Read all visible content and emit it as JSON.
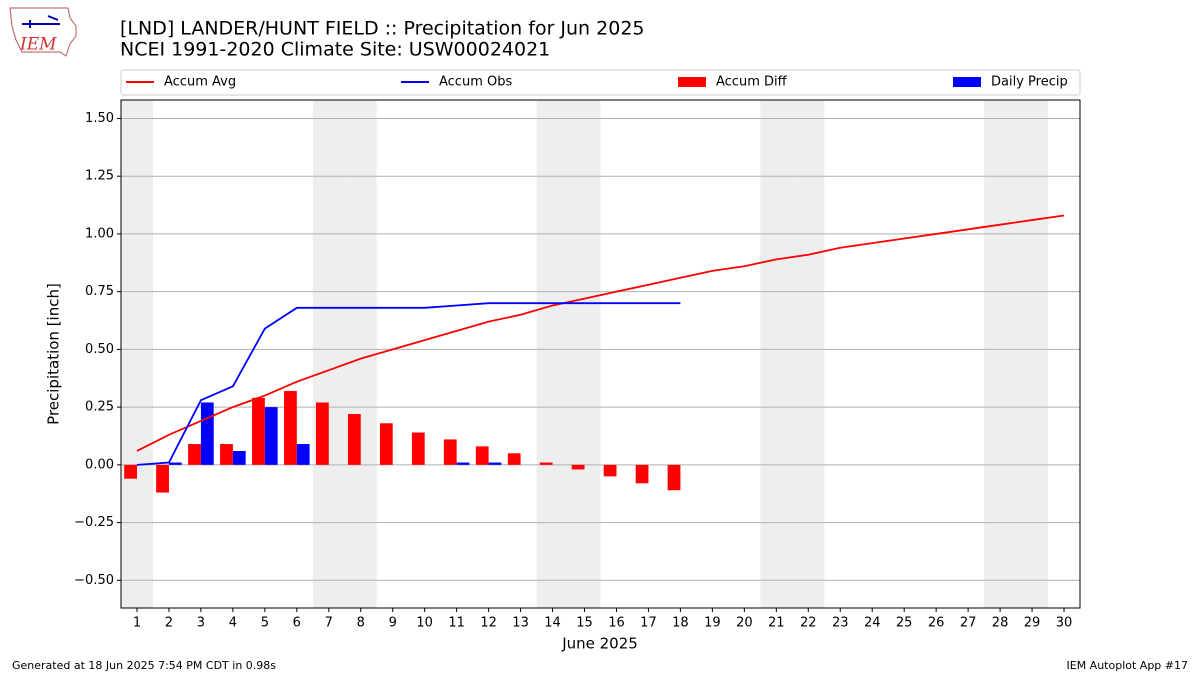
{
  "chart_data": {
    "type": "bar",
    "title": "[LND] LANDER/HUNT FIELD :: Precipitation for Jun 2025",
    "subtitle": "NCEI 1991-2020 Climate Site: USW00024021",
    "logo_text": "IEM",
    "xlabel": "June 2025",
    "ylabel": "Precipitation [inch]",
    "footer_left": "Generated at 18 Jun 2025 7:54 PM CDT in 0.98s",
    "footer_right": "IEM Autoplot App #17",
    "x": [
      1,
      2,
      3,
      4,
      5,
      6,
      7,
      8,
      9,
      10,
      11,
      12,
      13,
      14,
      15,
      16,
      17,
      18,
      19,
      20,
      21,
      22,
      23,
      24,
      25,
      26,
      27,
      28,
      29,
      30
    ],
    "xlim": [
      0.5,
      30.5
    ],
    "xticks": [
      1,
      2,
      3,
      4,
      5,
      6,
      7,
      8,
      9,
      10,
      11,
      12,
      13,
      14,
      15,
      16,
      17,
      18,
      19,
      20,
      21,
      22,
      23,
      24,
      25,
      26,
      27,
      28,
      29,
      30
    ],
    "ylim": [
      -0.62,
      1.58
    ],
    "yticks": [
      {
        "value": -0.5,
        "label": "−0.50"
      },
      {
        "value": -0.25,
        "label": "−0.25"
      },
      {
        "value": 0,
        "label": "0.00"
      },
      {
        "value": 0.25,
        "label": "0.25"
      },
      {
        "value": 0.5,
        "label": "0.50"
      },
      {
        "value": 0.75,
        "label": "0.75"
      },
      {
        "value": 1.0,
        "label": "1.00"
      },
      {
        "value": 1.25,
        "label": "1.25"
      },
      {
        "value": 1.5,
        "label": "1.50"
      }
    ],
    "grid": true,
    "shaded_days": [
      1,
      7,
      8,
      14,
      15,
      21,
      22,
      28,
      29
    ],
    "shade_color": "#eeeeee",
    "series": [
      {
        "name": "Accum Avg",
        "type": "line",
        "color": "#ff0000",
        "values": [
          0.06,
          0.13,
          0.19,
          0.25,
          0.3,
          0.36,
          0.41,
          0.46,
          0.5,
          0.54,
          0.58,
          0.62,
          0.65,
          0.69,
          0.72,
          0.75,
          0.78,
          0.81,
          0.84,
          0.86,
          0.89,
          0.91,
          0.94,
          0.96,
          0.98,
          1.0,
          1.02,
          1.04,
          1.06,
          1.08
        ]
      },
      {
        "name": "Accum Obs",
        "type": "line",
        "color": "#0000ff",
        "values": [
          0.0,
          0.01,
          0.28,
          0.34,
          0.59,
          0.68,
          0.68,
          0.68,
          0.68,
          0.68,
          0.69,
          0.7,
          0.7,
          0.7,
          0.7,
          0.7,
          0.7,
          0.7,
          null,
          null,
          null,
          null,
          null,
          null,
          null,
          null,
          null,
          null,
          null,
          null
        ]
      },
      {
        "name": "Accum Diff",
        "type": "bar",
        "color": "#ff0000",
        "offset": -0.4,
        "values": [
          -0.06,
          -0.12,
          0.09,
          0.09,
          0.29,
          0.32,
          0.27,
          0.22,
          0.18,
          0.14,
          0.11,
          0.08,
          0.05,
          0.01,
          -0.02,
          -0.05,
          -0.08,
          -0.11,
          null,
          null,
          null,
          null,
          null,
          null,
          null,
          null,
          null,
          null,
          null,
          null
        ]
      },
      {
        "name": "Daily Precip",
        "type": "bar",
        "color": "#0000ff",
        "offset": 0,
        "values": [
          0,
          0.01,
          0.27,
          0.06,
          0.25,
          0.09,
          0,
          0,
          0,
          0,
          0.01,
          0.01,
          0,
          0,
          0,
          0,
          0,
          0,
          null,
          null,
          null,
          null,
          null,
          null,
          null,
          null,
          null,
          null,
          null,
          null
        ]
      }
    ]
  }
}
